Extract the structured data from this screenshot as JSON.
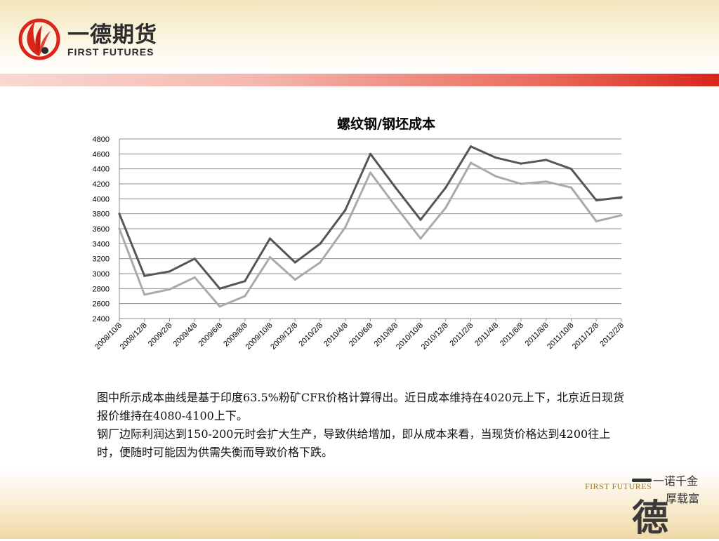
{
  "header": {
    "logo_cn": "一德期货",
    "logo_en": "FIRST FUTURES"
  },
  "chart_data": {
    "type": "line",
    "title": "螺纹钢/钢坯成本",
    "xlabel": "",
    "ylabel": "",
    "ylim": [
      2400,
      4800
    ],
    "yticks": [
      2400,
      2600,
      2800,
      3000,
      3200,
      3400,
      3600,
      3800,
      4000,
      4200,
      4400,
      4600,
      4800
    ],
    "grid": true,
    "legend": "none",
    "x": [
      "2008/10/8",
      "2008/12/8",
      "2009/2/8",
      "2009/4/8",
      "2009/6/8",
      "2009/8/8",
      "2009/10/8",
      "2009/12/8",
      "2010/2/8",
      "2010/4/8",
      "2010/6/8",
      "2010/8/8",
      "2010/10/8",
      "2010/12/8",
      "2011/2/8",
      "2011/4/8",
      "2011/6/8",
      "2011/8/8",
      "2011/10/8",
      "2011/12/8",
      "2012/2/8"
    ],
    "series": [
      {
        "color": "#555555",
        "values": [
          3800,
          2970,
          3030,
          3200,
          2800,
          2900,
          3470,
          3150,
          3400,
          3850,
          4600,
          4150,
          3720,
          4150,
          4700,
          4550,
          4470,
          4520,
          4400,
          3980,
          4020
        ]
      },
      {
        "color": "#aaaaaa",
        "values": [
          3600,
          2720,
          2790,
          2950,
          2560,
          2700,
          3220,
          2920,
          3150,
          3620,
          4350,
          3900,
          3470,
          3880,
          4480,
          4300,
          4200,
          4230,
          4150,
          3700,
          3780
        ]
      }
    ]
  },
  "caption": {
    "para1": "图中所示成本曲线是基于印度63.5%粉矿CFR价格计算得出。近日成本维持在4020元上下，北京近日现货报价维持在4080-4100上下。",
    "para2": "钢厂边际利润达到150-200元时会扩大生产，导致供给增加，即从成本来看，当现货价格达到4200往上时，便随时可能因为供需失衡而导致价格下跌。"
  },
  "footer": {
    "logo_en": "FIRST FUTURES",
    "slogan_line1": "一诺千金",
    "slogan_line2": "厚载富",
    "logo_char": "德"
  }
}
